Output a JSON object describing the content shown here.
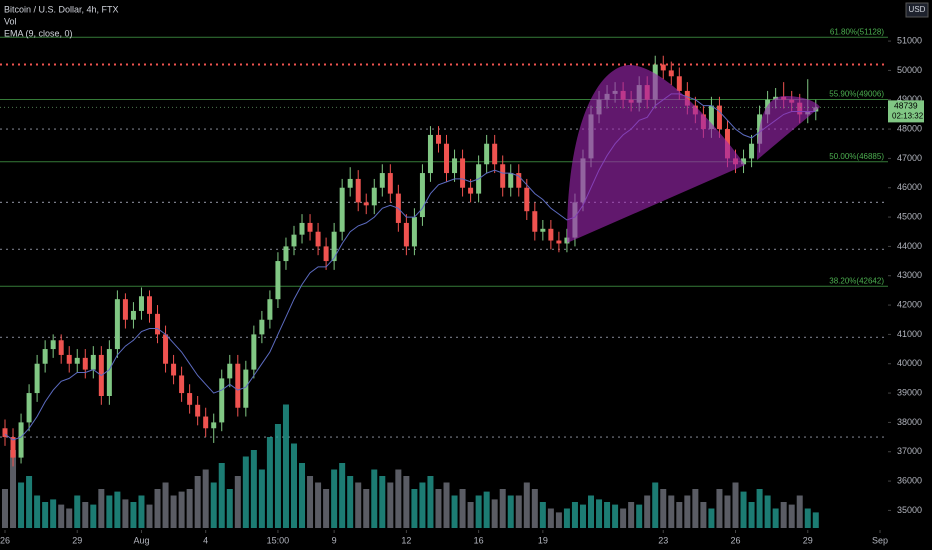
{
  "chart_data": {
    "type": "candlestick",
    "title": "Bitcoin / U.S. Dollar, 4h, FTX",
    "volume_label": "Vol",
    "ema_label": "EMA (9, close, 0)",
    "currency": "USD",
    "last_price": 48739,
    "countdown": "02:13:32",
    "up_color": "#81c784",
    "down_color": "#ef5350",
    "volume_up_color": "#26a69a",
    "volume_down_color": "#787b86",
    "ema_color": "#5c6bc0",
    "ylim": [
      34400,
      52400
    ],
    "yticks": [
      35000,
      36000,
      37000,
      38000,
      39000,
      40000,
      41000,
      42000,
      43000,
      44000,
      45000,
      46000,
      47000,
      48000,
      49000,
      50000,
      51000
    ],
    "xlim": [
      0,
      109
    ],
    "xticks": [
      {
        "value": 0,
        "label": "26"
      },
      {
        "value": 9,
        "label": "29"
      },
      {
        "value": 17,
        "label": "Aug"
      },
      {
        "value": 25,
        "label": "4"
      },
      {
        "value": 34,
        "label": "15:00"
      },
      {
        "value": 41,
        "label": "9"
      },
      {
        "value": 50,
        "label": "12"
      },
      {
        "value": 59,
        "label": "16"
      },
      {
        "value": 67,
        "label": "19"
      },
      {
        "value": 82,
        "label": "23"
      },
      {
        "value": 91,
        "label": "26"
      },
      {
        "value": 100,
        "label": "29"
      },
      {
        "value": 109,
        "label": "Sep"
      }
    ],
    "fib_levels": [
      {
        "value": 51128,
        "label": "61.80%(51128)"
      },
      {
        "value": 49006,
        "label": "55.90%(49006)"
      },
      {
        "value": 46885,
        "label": "50.00%(46885)"
      },
      {
        "value": 42642,
        "label": "38.20%(42642)"
      }
    ],
    "resistance": 50200,
    "levels": [
      48000,
      45500,
      43900,
      40900,
      37500
    ],
    "open": [
      37800,
      37500,
      36800,
      38000,
      39000,
      40000,
      40500,
      40800,
      40300,
      40000,
      40200,
      39800,
      40300,
      38900,
      40500,
      42200,
      41500,
      41800,
      42300,
      41700,
      41000,
      40000,
      39600,
      39000,
      38600,
      38200,
      37800,
      38000,
      39500,
      40000,
      38500,
      39800,
      41000,
      41500,
      42200,
      43500,
      44000,
      44400,
      44800,
      44500,
      44000,
      43500,
      44500,
      46000,
      46300,
      45500,
      45400,
      46000,
      46500,
      45800,
      44800,
      44000,
      45000,
      46500,
      47800,
      47500,
      46500,
      47000,
      46000,
      45800,
      46800,
      47500,
      46800,
      46000,
      46500,
      46000,
      45200,
      44500,
      44600,
      44200,
      44100,
      44300,
      45500,
      47000,
      48500,
      49000,
      49200,
      49300,
      49000,
      48900,
      49500,
      49000,
      50200,
      50000,
      49800,
      49300,
      48800,
      48500,
      48000,
      48800,
      48000,
      47000,
      46800,
      47000,
      47500,
      48500,
      49000,
      49100,
      49000,
      48900,
      48500,
      48600
    ],
    "high": [
      38100,
      37800,
      38300,
      39300,
      40300,
      40800,
      41000,
      41000,
      40600,
      40500,
      40500,
      40600,
      40600,
      40800,
      42500,
      42400,
      42100,
      42600,
      42500,
      42000,
      41300,
      40300,
      39900,
      39300,
      38900,
      38500,
      38300,
      39800,
      40300,
      40300,
      40100,
      41300,
      41800,
      42500,
      43800,
      44300,
      44700,
      45100,
      45100,
      44800,
      44300,
      44800,
      46300,
      46700,
      46600,
      45800,
      46300,
      46800,
      46800,
      46100,
      45100,
      45300,
      46800,
      48100,
      48100,
      47800,
      47300,
      47300,
      46300,
      47100,
      47800,
      47800,
      47100,
      46800,
      46800,
      46300,
      45500,
      44900,
      44900,
      44500,
      44600,
      45800,
      47300,
      48800,
      49300,
      49500,
      49600,
      49600,
      49300,
      49800,
      49800,
      50500,
      50500,
      50300,
      50100,
      49600,
      49100,
      48800,
      49100,
      49100,
      48300,
      47300,
      47300,
      47800,
      48800,
      49300,
      49400,
      49600,
      49300,
      49200,
      49700,
      49000
    ],
    "low": [
      37200,
      36500,
      36600,
      37700,
      38700,
      39700,
      40200,
      40000,
      39700,
      39700,
      39500,
      39500,
      38600,
      38600,
      40200,
      41200,
      41200,
      41500,
      41400,
      40700,
      39700,
      39300,
      38700,
      38300,
      37900,
      37500,
      37300,
      37700,
      39200,
      38200,
      38200,
      39500,
      40700,
      41200,
      41900,
      43200,
      43700,
      44100,
      44200,
      43700,
      43200,
      43200,
      44200,
      45700,
      45200,
      45100,
      45100,
      45700,
      45500,
      44500,
      43700,
      43700,
      44700,
      46200,
      47200,
      46200,
      46200,
      45700,
      45500,
      45500,
      46500,
      46500,
      45700,
      45700,
      45700,
      44900,
      44200,
      44200,
      43900,
      43800,
      43800,
      44000,
      45200,
      46700,
      48200,
      48700,
      48900,
      48700,
      48600,
      48600,
      48700,
      48700,
      49700,
      49500,
      49000,
      48500,
      48200,
      47700,
      47700,
      47700,
      46700,
      46500,
      46500,
      46700,
      47200,
      48200,
      48700,
      48700,
      48600,
      48200,
      48200,
      48300
    ],
    "close": [
      37500,
      36800,
      38000,
      39000,
      40000,
      40500,
      40800,
      40300,
      40000,
      40200,
      39800,
      40300,
      38900,
      40500,
      42200,
      41500,
      41800,
      42300,
      41700,
      41000,
      40000,
      39600,
      39000,
      38600,
      38200,
      37800,
      38000,
      39500,
      40000,
      38500,
      39800,
      41000,
      41500,
      42200,
      43500,
      44000,
      44400,
      44800,
      44500,
      44000,
      43500,
      44500,
      46000,
      46300,
      45500,
      45400,
      46000,
      46500,
      45800,
      44800,
      44000,
      45000,
      46500,
      47800,
      47500,
      46500,
      47000,
      46000,
      45800,
      46800,
      47500,
      46800,
      46000,
      46500,
      46000,
      45200,
      44500,
      44600,
      44200,
      44100,
      44300,
      45500,
      47000,
      48500,
      49000,
      49200,
      49300,
      49000,
      48900,
      49500,
      49000,
      50200,
      50000,
      49800,
      49300,
      48800,
      48500,
      48000,
      48800,
      48000,
      47000,
      46800,
      47000,
      47500,
      48500,
      49000,
      49100,
      49000,
      48900,
      48500,
      48600,
      48739
    ],
    "volume": [
      30,
      60,
      35,
      40,
      25,
      20,
      22,
      18,
      15,
      25,
      20,
      18,
      30,
      25,
      28,
      22,
      20,
      25,
      18,
      30,
      35,
      25,
      28,
      30,
      40,
      45,
      35,
      50,
      30,
      40,
      55,
      60,
      45,
      70,
      80,
      95,
      65,
      50,
      40,
      35,
      30,
      45,
      50,
      40,
      35,
      30,
      45,
      40,
      35,
      45,
      40,
      30,
      35,
      40,
      30,
      35,
      25,
      30,
      20,
      25,
      28,
      22,
      30,
      25,
      25,
      35,
      30,
      20,
      15,
      12,
      15,
      20,
      18,
      25,
      22,
      20,
      18,
      15,
      20,
      18,
      25,
      35,
      30,
      25,
      20,
      25,
      30,
      20,
      15,
      30,
      25,
      35,
      28,
      20,
      30,
      25,
      15,
      20,
      18,
      25,
      15,
      12
    ],
    "ema": [
      37600,
      37400,
      37500,
      37800,
      38200,
      38700,
      39100,
      39400,
      39500,
      39700,
      39700,
      39800,
      39600,
      39800,
      40300,
      40600,
      40800,
      41100,
      41200,
      41200,
      41000,
      40700,
      40400,
      40000,
      39600,
      39300,
      39000,
      39100,
      39300,
      39100,
      39200,
      39600,
      40000,
      40400,
      41000,
      41600,
      42200,
      42700,
      43100,
      43300,
      43300,
      43600,
      44100,
      44500,
      44700,
      44800,
      45000,
      45300,
      45400,
      45300,
      45000,
      45000,
      45300,
      45800,
      46100,
      46200,
      46300,
      46300,
      46200,
      46300,
      46500,
      46600,
      46500,
      46500,
      46400,
      46100,
      45800,
      45600,
      45300,
      45100,
      44900,
      45000,
      45400,
      46000,
      46600,
      47100,
      47500,
      47800,
      48000,
      48300,
      48400,
      48800,
      49000,
      49200,
      49200,
      49100,
      49000,
      48800,
      48800,
      48600,
      48300,
      48000,
      47800,
      47700,
      47900,
      48100,
      48300,
      48500,
      48600,
      48600,
      48600,
      48600
    ]
  }
}
